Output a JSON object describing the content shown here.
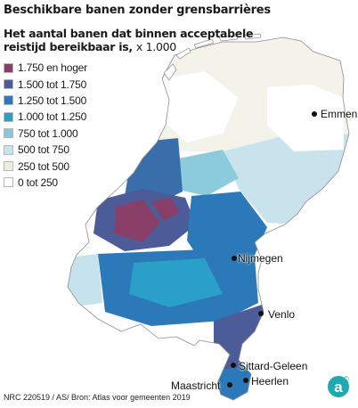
{
  "header": {
    "title": "Beschikbare banen zonder grensbarrières",
    "subtitle": "Het aantal banen dat binnen acceptabele reistijd bereikbaar is,",
    "unit": "x 1.000"
  },
  "legend": [
    {
      "label": "1.750 en hoger",
      "color": "#8a3f69"
    },
    {
      "label": "1.500 tot 1.750",
      "color": "#4c5c99"
    },
    {
      "label": "1.250 tot 1.500",
      "color": "#2b79b8"
    },
    {
      "label": "1.000 tot 1.250",
      "color": "#2aa0c8"
    },
    {
      "label": "750 tot 1.000",
      "color": "#83c8db"
    },
    {
      "label": "500 tot 750",
      "color": "#c6e2ec"
    },
    {
      "label": "250 tot 500",
      "color": "#eeeedd"
    },
    {
      "label": "0 tot 250",
      "color": "#ffffff"
    }
  ],
  "cities": [
    {
      "name": "Emmen"
    },
    {
      "name": "Nijmegen"
    },
    {
      "name": "Venlo"
    },
    {
      "name": "Sittard-Geleen"
    },
    {
      "name": "Heerlen"
    },
    {
      "name": "Maastricht"
    }
  ],
  "footer": {
    "source": "NRC 220519 / AS/ Bron: Atlas voor gemeenten 2019",
    "logo_glyph": "a",
    "logo_mark": "©"
  }
}
